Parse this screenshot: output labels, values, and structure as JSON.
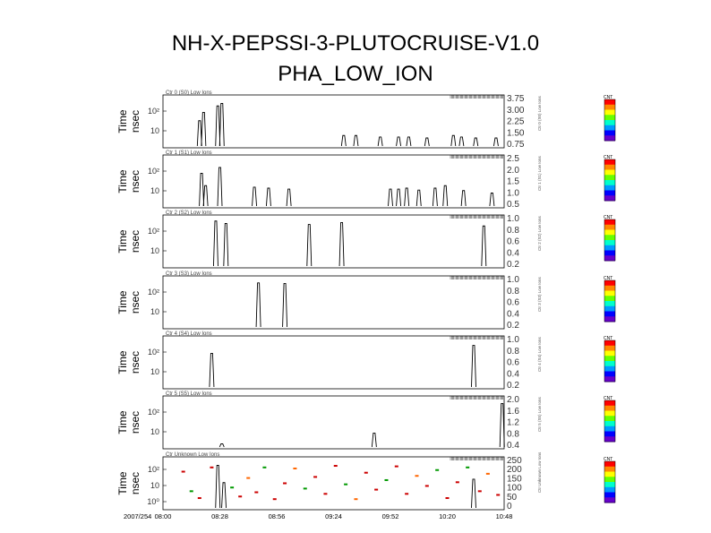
{
  "title": [
    "NH-X-PEPSSI-3-PLUTOCRUISE-V1.0",
    "PHA_LOW_ION"
  ],
  "y_label": [
    "Time",
    "nsec"
  ],
  "colorbar_label": "CNT",
  "colorbar_colors": [
    "#ff0000",
    "#ff8800",
    "#ffff00",
    "#66ff00",
    "#00ffcc",
    "#0099ff",
    "#0000ff",
    "#6600cc"
  ],
  "time_axis": {
    "start_label": "2007/254",
    "labels": [
      "08:00",
      "08:28",
      "08:56",
      "09:24",
      "09:52",
      "10:20",
      "10:48"
    ]
  },
  "chart_data": [
    {
      "type": "line",
      "title": "Ctr 0 (S0) Low Ions",
      "yticks": [
        "10²",
        "10"
      ],
      "right_axis": [
        "3.75",
        "3.00",
        "2.25",
        "1.50",
        "0.75"
      ],
      "x_time_start": "08:00",
      "x_time_end": "10:48",
      "spikes": [
        {
          "t": "08:18",
          "level": 0.55
        },
        {
          "t": "08:20",
          "level": 0.72
        },
        {
          "t": "08:27",
          "level": 0.85
        },
        {
          "t": "08:29",
          "level": 0.9
        },
        {
          "t": "09:29",
          "level": 0.25
        },
        {
          "t": "09:35",
          "level": 0.25
        },
        {
          "t": "09:47",
          "level": 0.22
        },
        {
          "t": "09:56",
          "level": 0.22
        },
        {
          "t": "10:01",
          "level": 0.22
        },
        {
          "t": "10:10",
          "level": 0.2
        },
        {
          "t": "10:23",
          "level": 0.25
        },
        {
          "t": "10:27",
          "level": 0.22
        },
        {
          "t": "10:34",
          "level": 0.2
        },
        {
          "t": "10:44",
          "level": 0.2
        }
      ]
    },
    {
      "type": "line",
      "title": "Ctr 1 (S1) Low Ions",
      "yticks": [
        "10²",
        "10"
      ],
      "right_axis": [
        "2.5",
        "2.0",
        "1.5",
        "1.0",
        "0.5"
      ],
      "x_time_start": "08:00",
      "x_time_end": "10:48",
      "spikes": [
        {
          "t": "08:19",
          "level": 0.7
        },
        {
          "t": "08:21",
          "level": 0.45
        },
        {
          "t": "08:28",
          "level": 0.82
        },
        {
          "t": "08:45",
          "level": 0.42
        },
        {
          "t": "08:52",
          "level": 0.4
        },
        {
          "t": "09:02",
          "level": 0.38
        },
        {
          "t": "09:52",
          "level": 0.38
        },
        {
          "t": "09:56",
          "level": 0.38
        },
        {
          "t": "10:00",
          "level": 0.4
        },
        {
          "t": "10:06",
          "level": 0.36
        },
        {
          "t": "10:14",
          "level": 0.4
        },
        {
          "t": "10:19",
          "level": 0.45
        },
        {
          "t": "10:28",
          "level": 0.35
        },
        {
          "t": "10:42",
          "level": 0.3
        }
      ]
    },
    {
      "type": "line",
      "title": "Ctr 2 (S2) Low Ions",
      "yticks": [
        "10²",
        "10"
      ],
      "right_axis": [
        "1.0",
        "0.8",
        "0.6",
        "0.4",
        "0.2"
      ],
      "x_time_start": "08:00",
      "x_time_end": "10:48",
      "spikes": [
        {
          "t": "08:26",
          "level": 0.95
        },
        {
          "t": "08:31",
          "level": 0.9
        },
        {
          "t": "09:12",
          "level": 0.88
        },
        {
          "t": "09:28",
          "level": 0.92
        },
        {
          "t": "10:38",
          "level": 0.85
        }
      ]
    },
    {
      "type": "line",
      "title": "Ctr 3 (S3) Low Ions",
      "yticks": [
        "10²",
        "10"
      ],
      "right_axis": [
        "1.0",
        "0.8",
        "0.6",
        "0.4",
        "0.2"
      ],
      "x_time_start": "08:00",
      "x_time_end": "10:48",
      "spikes": [
        {
          "t": "08:47",
          "level": 0.93
        },
        {
          "t": "09:00",
          "level": 0.92
        }
      ]
    },
    {
      "type": "line",
      "title": "Ctr 4 (S4) Low Ions",
      "yticks": [
        "10²",
        "10"
      ],
      "right_axis": [
        "1.0",
        "0.8",
        "0.6",
        "0.4",
        "0.2"
      ],
      "x_time_start": "08:00",
      "x_time_end": "10:48",
      "spikes": [
        {
          "t": "08:24",
          "level": 0.72
        },
        {
          "t": "10:33",
          "level": 0.88
        }
      ]
    },
    {
      "type": "line",
      "title": "Ctr 5 (S5) Low Ions",
      "yticks": [
        "10²",
        "10"
      ],
      "right_axis": [
        "2.0",
        "1.6",
        "1.2",
        "0.8",
        "0.4"
      ],
      "x_time_start": "08:00",
      "x_time_end": "10:48",
      "spikes": [
        {
          "t": "08:29",
          "level": 0.1
        },
        {
          "t": "09:44",
          "level": 0.32
        },
        {
          "t": "10:47",
          "level": 0.92
        }
      ]
    },
    {
      "type": "scatter",
      "title": "Ctr Unknown Low Ions",
      "yticks": [
        "10²",
        "10",
        "10⁰"
      ],
      "right_axis": [
        "250",
        "200",
        "150",
        "100",
        "50",
        "0"
      ],
      "x_time_start": "08:00",
      "x_time_end": "10:48",
      "spikes": [
        {
          "t": "08:27",
          "level": 0.9
        },
        {
          "t": "08:30",
          "level": 0.55
        },
        {
          "t": "10:33",
          "level": 0.62
        }
      ],
      "points": [
        {
          "t": "08:10",
          "y": 0.72,
          "c": "#cc0000"
        },
        {
          "t": "08:14",
          "y": 0.35,
          "c": "#009900"
        },
        {
          "t": "08:18",
          "y": 0.22,
          "c": "#cc0000"
        },
        {
          "t": "08:24",
          "y": 0.8,
          "c": "#cc0000"
        },
        {
          "t": "08:34",
          "y": 0.42,
          "c": "#009900"
        },
        {
          "t": "08:38",
          "y": 0.25,
          "c": "#cc0000"
        },
        {
          "t": "08:42",
          "y": 0.6,
          "c": "#ff6600"
        },
        {
          "t": "08:46",
          "y": 0.33,
          "c": "#cc0000"
        },
        {
          "t": "08:50",
          "y": 0.8,
          "c": "#009900"
        },
        {
          "t": "08:55",
          "y": 0.2,
          "c": "#cc0000"
        },
        {
          "t": "09:00",
          "y": 0.5,
          "c": "#cc0000"
        },
        {
          "t": "09:05",
          "y": 0.78,
          "c": "#ff6600"
        },
        {
          "t": "09:10",
          "y": 0.4,
          "c": "#009900"
        },
        {
          "t": "09:15",
          "y": 0.62,
          "c": "#cc0000"
        },
        {
          "t": "09:20",
          "y": 0.3,
          "c": "#cc0000"
        },
        {
          "t": "09:25",
          "y": 0.83,
          "c": "#cc0000"
        },
        {
          "t": "09:30",
          "y": 0.48,
          "c": "#009900"
        },
        {
          "t": "09:35",
          "y": 0.2,
          "c": "#ff6600"
        },
        {
          "t": "09:40",
          "y": 0.7,
          "c": "#cc0000"
        },
        {
          "t": "09:45",
          "y": 0.38,
          "c": "#cc0000"
        },
        {
          "t": "09:50",
          "y": 0.56,
          "c": "#009900"
        },
        {
          "t": "09:55",
          "y": 0.82,
          "c": "#cc0000"
        },
        {
          "t": "10:00",
          "y": 0.3,
          "c": "#cc0000"
        },
        {
          "t": "10:05",
          "y": 0.64,
          "c": "#ff6600"
        },
        {
          "t": "10:10",
          "y": 0.45,
          "c": "#cc0000"
        },
        {
          "t": "10:15",
          "y": 0.75,
          "c": "#009900"
        },
        {
          "t": "10:20",
          "y": 0.22,
          "c": "#cc0000"
        },
        {
          "t": "10:25",
          "y": 0.52,
          "c": "#cc0000"
        },
        {
          "t": "10:30",
          "y": 0.8,
          "c": "#009900"
        },
        {
          "t": "10:36",
          "y": 0.35,
          "c": "#cc0000"
        },
        {
          "t": "10:40",
          "y": 0.68,
          "c": "#ff6600"
        },
        {
          "t": "10:45",
          "y": 0.28,
          "c": "#cc0000"
        }
      ]
    }
  ]
}
